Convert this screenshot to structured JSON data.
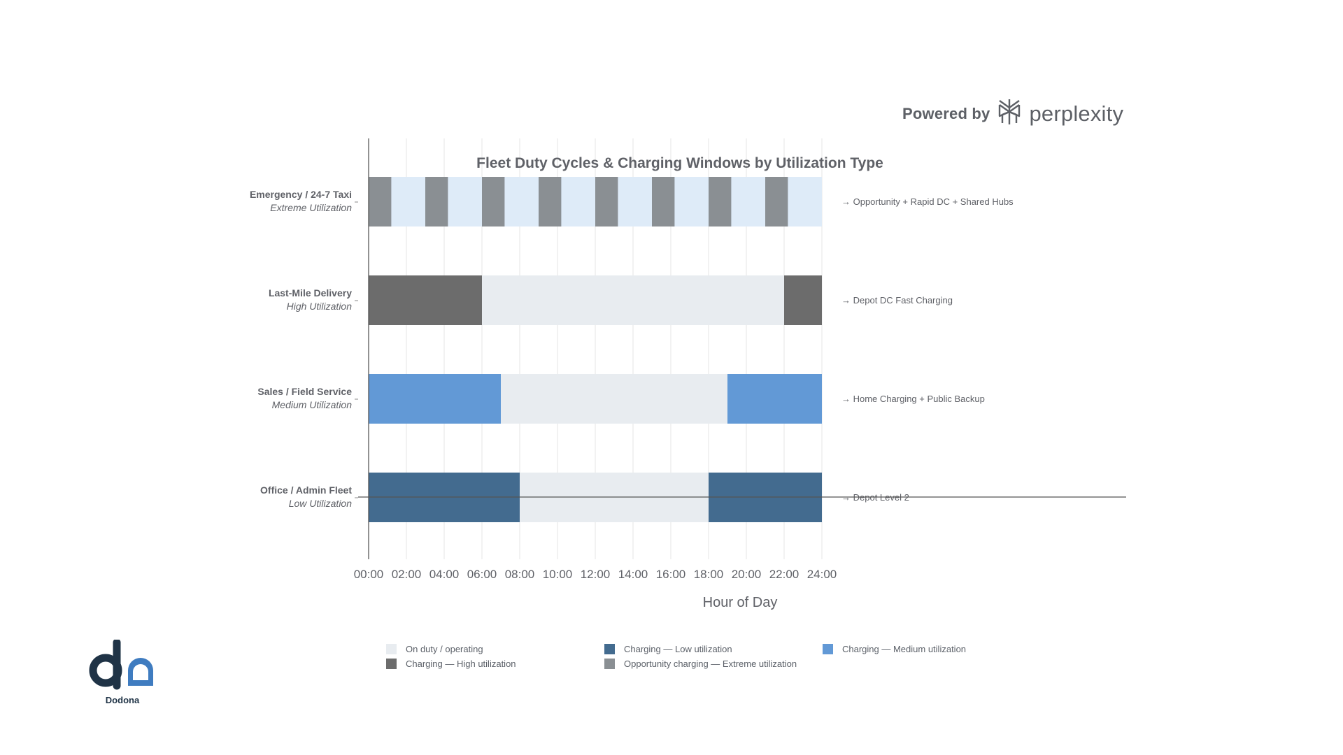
{
  "branding": {
    "powered_by": "Powered by",
    "partner_name": "perplexity",
    "partner_icon": "perplexity-logo-icon",
    "company_name": "Dodona",
    "company_icon": "dodona-logo-icon"
  },
  "colors": {
    "on_duty": "#e8ecf0",
    "on_duty_extreme": "#deebf8",
    "charge_low": "#436b8f",
    "charge_medium": "#6299d6",
    "charge_high": "#6c6c6c",
    "charge_extreme": "#8a8f93",
    "axis": "#4a4a4a",
    "grid": "#e6e6e6",
    "text": "#5f6167",
    "dodona_dark": "#1f3346",
    "dodona_blue": "#3f7cc0"
  },
  "chart_data": {
    "type": "gantt",
    "title": "Fleet Duty Cycles & Charging Windows by Utilization Type",
    "xlabel": "Hour of Day",
    "xlim": [
      0,
      24
    ],
    "xticks": [
      0,
      2,
      4,
      6,
      8,
      10,
      12,
      14,
      16,
      18,
      20,
      22,
      24
    ],
    "xtick_labels": [
      "00:00",
      "02:00",
      "04:00",
      "06:00",
      "08:00",
      "10:00",
      "12:00",
      "14:00",
      "16:00",
      "18:00",
      "20:00",
      "22:00",
      "24:00"
    ],
    "grid": true,
    "legend_position": "bottom",
    "rows": [
      {
        "label": "Emergency / 24-7 Taxi",
        "sublabel": "Extreme Utilization",
        "annotation": "→ Opportunity + Rapid DC + Shared Hubs",
        "segments": [
          {
            "start": 0,
            "end": 24,
            "kind": "on_duty_extreme"
          },
          {
            "start": 0,
            "end": 1.2,
            "kind": "charge_extreme"
          },
          {
            "start": 3,
            "end": 4.2,
            "kind": "charge_extreme"
          },
          {
            "start": 6,
            "end": 7.2,
            "kind": "charge_extreme"
          },
          {
            "start": 9,
            "end": 10.2,
            "kind": "charge_extreme"
          },
          {
            "start": 12,
            "end": 13.2,
            "kind": "charge_extreme"
          },
          {
            "start": 15,
            "end": 16.2,
            "kind": "charge_extreme"
          },
          {
            "start": 18,
            "end": 19.2,
            "kind": "charge_extreme"
          },
          {
            "start": 21,
            "end": 22.2,
            "kind": "charge_extreme"
          }
        ]
      },
      {
        "label": "Last-Mile Delivery",
        "sublabel": "High Utilization",
        "annotation": "→ Depot DC Fast Charging",
        "segments": [
          {
            "start": 0,
            "end": 6,
            "kind": "charge_high"
          },
          {
            "start": 6,
            "end": 22,
            "kind": "on_duty"
          },
          {
            "start": 22,
            "end": 24,
            "kind": "charge_high"
          }
        ]
      },
      {
        "label": "Sales / Field Service",
        "sublabel": "Medium Utilization",
        "annotation": "→ Home Charging + Public Backup",
        "segments": [
          {
            "start": 0,
            "end": 7,
            "kind": "charge_medium"
          },
          {
            "start": 7,
            "end": 19,
            "kind": "on_duty"
          },
          {
            "start": 19,
            "end": 24,
            "kind": "charge_medium"
          }
        ]
      },
      {
        "label": "Office / Admin Fleet",
        "sublabel": "Low Utilization",
        "annotation": "→ Depot Level 2",
        "segments": [
          {
            "start": 0,
            "end": 8,
            "kind": "charge_low"
          },
          {
            "start": 8,
            "end": 18,
            "kind": "on_duty"
          },
          {
            "start": 18,
            "end": 24,
            "kind": "charge_low"
          }
        ]
      }
    ],
    "legend": [
      {
        "label": "On duty / operating",
        "kind": "on_duty"
      },
      {
        "label": "Charging — Low utilization",
        "kind": "charge_low"
      },
      {
        "label": "Charging — Medium utilization",
        "kind": "charge_medium"
      },
      {
        "label": "Charging — High utilization",
        "kind": "charge_high"
      },
      {
        "label": "Opportunity charging — Extreme utilization",
        "kind": "charge_extreme"
      }
    ]
  }
}
